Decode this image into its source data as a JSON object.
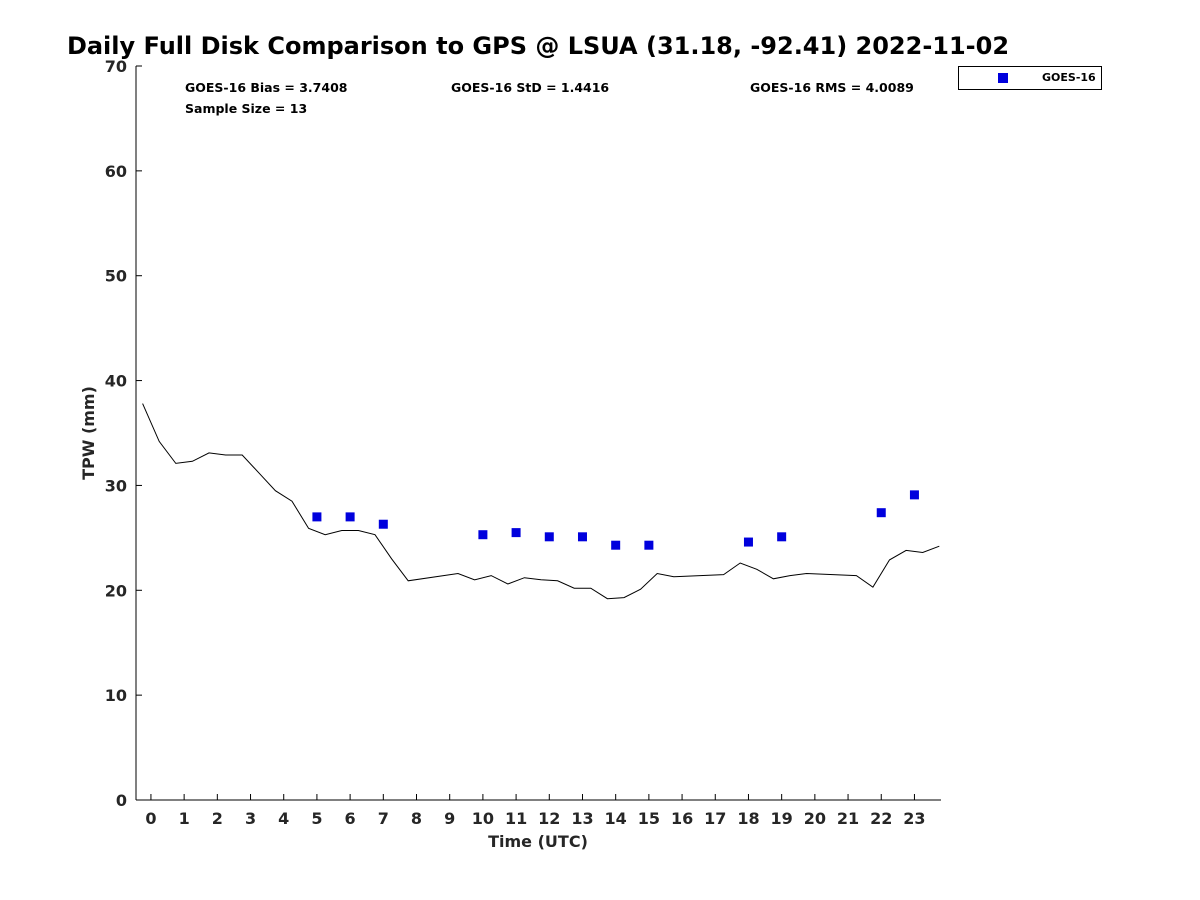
{
  "chart_data": {
    "type": "scatter",
    "title": "Daily Full Disk Comparison to GPS @ LSUA (31.18, -92.41) 2022-11-02",
    "xlabel": "Time (UTC)",
    "ylabel": "TPW (mm)",
    "xlim": [
      -0.45,
      23.8
    ],
    "ylim": [
      0,
      70
    ],
    "x_ticks": [
      0,
      1,
      2,
      3,
      4,
      5,
      6,
      7,
      8,
      9,
      10,
      11,
      12,
      13,
      14,
      15,
      16,
      17,
      18,
      19,
      20,
      21,
      22,
      23
    ],
    "x_tick_labels": [
      "0",
      "1",
      "2",
      "3",
      "4",
      "5",
      "6",
      "7",
      "8",
      "9",
      "10",
      "11",
      "12",
      "13",
      "14",
      "15",
      "16",
      "17",
      "18",
      "19",
      "20",
      "21",
      "22",
      "23"
    ],
    "y_ticks": [
      0,
      10,
      20,
      30,
      40,
      50,
      60,
      70
    ],
    "y_tick_labels": [
      "0",
      "10",
      "20",
      "30",
      "40",
      "50",
      "60",
      "70"
    ],
    "stats": {
      "bias": "GOES-16 Bias = 3.7408",
      "std": "GOES-16 StD = 1.4416",
      "rms": "GOES-16 RMS = 4.0089",
      "sample_size": "Sample Size = 13"
    },
    "legend": {
      "label": "GOES-16",
      "placement": "top-right outside axes",
      "color": "#0000dd"
    },
    "series": [
      {
        "name": "GOES-16",
        "kind": "scatter",
        "marker": "square",
        "color": "#0000dd",
        "x": [
          5,
          6,
          7,
          10,
          11,
          12,
          13,
          14,
          15,
          18,
          19,
          22,
          23
        ],
        "y": [
          27.0,
          27.0,
          26.3,
          25.3,
          25.5,
          25.1,
          25.1,
          24.3,
          24.3,
          24.6,
          25.1,
          27.4,
          29.1
        ]
      },
      {
        "name": "GPS",
        "kind": "line",
        "color": "#000000",
        "x": [
          -0.25,
          0.25,
          0.75,
          1.25,
          1.75,
          2.25,
          2.75,
          3.25,
          3.75,
          4.25,
          4.75,
          5.25,
          5.75,
          6.25,
          6.75,
          7.25,
          7.75,
          9.25,
          9.75,
          10.25,
          10.75,
          11.25,
          11.75,
          12.25,
          12.75,
          13.25,
          13.75,
          14.25,
          14.75,
          15.25,
          15.75,
          17.25,
          17.75,
          18.25,
          18.75,
          19.25,
          19.75,
          21.25,
          21.75,
          22.25,
          22.75,
          23.25,
          23.75
        ],
        "y": [
          37.8,
          34.2,
          32.1,
          32.3,
          33.1,
          32.9,
          32.9,
          31.2,
          29.5,
          28.5,
          25.9,
          25.3,
          25.7,
          25.7,
          25.3,
          23.0,
          20.9,
          21.6,
          21.0,
          21.4,
          20.6,
          21.2,
          21.0,
          20.9,
          20.2,
          20.2,
          19.2,
          19.3,
          20.1,
          21.6,
          21.3,
          21.5,
          22.6,
          22.0,
          21.1,
          21.4,
          21.6,
          21.4,
          20.3,
          22.9,
          23.8,
          23.6,
          24.2
        ]
      }
    ]
  }
}
